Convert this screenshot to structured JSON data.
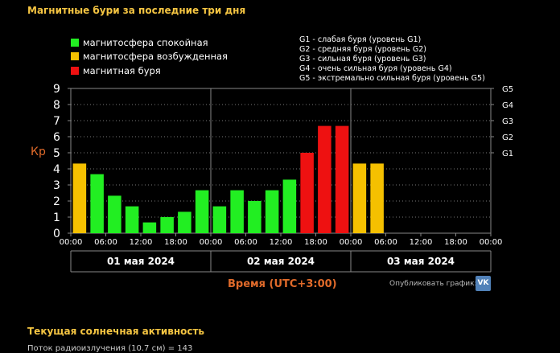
{
  "title": "Магнитные бури за последние три дня",
  "legend": [
    {
      "label": "магнитосфера спокойная",
      "color": "#22ee22"
    },
    {
      "label": "магнитосфера возбужденная",
      "color": "#f5c000"
    },
    {
      "label": "магнитная буря",
      "color": "#ee1111"
    }
  ],
  "g_legend": [
    "G1 - слабая буря (уровень G1)",
    "G2 - средняя буря (уровень G2)",
    "G3 - сильная буря (уровень G3)",
    "G4 - очень сильная буря (уровень G4)",
    "G5 - экстремально сильная буря (уровень G5)"
  ],
  "kp_axis_label": "Кр",
  "days": [
    "01 мая 2024",
    "02 мая 2024",
    "03 мая 2024"
  ],
  "time_axis_label": "Время (UTC+3:00)",
  "share_label": "Опубликовать график:",
  "vk_label": "VK",
  "section_title": "Текущая солнечная активность",
  "partial_text": "Поток радиоизлучения (10.7 см) = 143",
  "colors": {
    "quiet": "#22ee22",
    "excited": "#f5c000",
    "storm": "#ee1111"
  },
  "chart_data": {
    "type": "bar",
    "ylabel": "Кр",
    "xlabel": "Время (UTC+3:00)",
    "ylim": [
      0,
      9
    ],
    "y_ticks": [
      "0",
      "1",
      "2",
      "3",
      "4",
      "5",
      "6",
      "7",
      "8",
      "9"
    ],
    "g_ticks": [
      {
        "label": "G1",
        "value": 5
      },
      {
        "label": "G2",
        "value": 6
      },
      {
        "label": "G3",
        "value": 7
      },
      {
        "label": "G4",
        "value": 8
      },
      {
        "label": "G5",
        "value": 9
      }
    ],
    "x_tick_labels": [
      "00:00",
      "06:00",
      "12:00",
      "18:00",
      "00:00",
      "06:00",
      "12:00",
      "18:00",
      "00:00",
      "06:00",
      "12:00",
      "18:00",
      "00:00"
    ],
    "values": [
      4.33,
      3.67,
      2.33,
      1.67,
      0.67,
      1.0,
      1.33,
      2.67,
      1.67,
      2.67,
      2.0,
      2.67,
      3.33,
      5.0,
      6.67,
      6.67,
      4.33,
      4.33
    ],
    "levels": [
      "excited",
      "quiet",
      "quiet",
      "quiet",
      "quiet",
      "quiet",
      "quiet",
      "quiet",
      "quiet",
      "quiet",
      "quiet",
      "quiet",
      "quiet",
      "storm",
      "storm",
      "storm",
      "excited",
      "excited"
    ]
  }
}
